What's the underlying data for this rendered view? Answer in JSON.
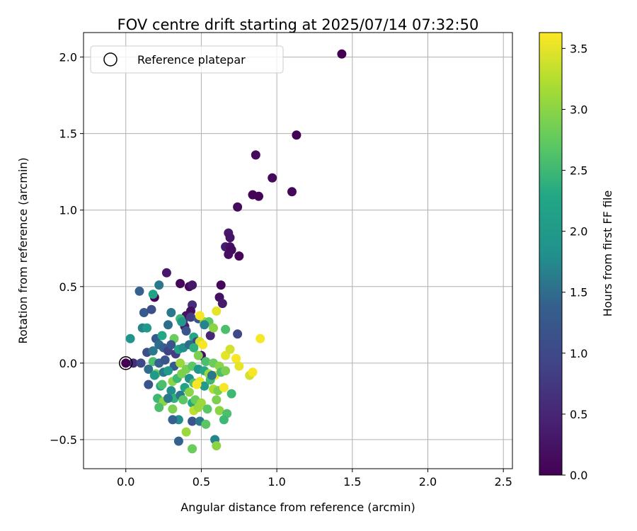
{
  "chart_data": {
    "type": "scatter",
    "title": "FOV centre drift starting at 2025/07/14 07:32:50",
    "xlabel": "Angular distance from reference (arcmin)",
    "ylabel": "Rotation from reference (arcmin)",
    "xlim": [
      -0.28,
      2.56
    ],
    "ylim": [
      -0.69,
      2.16
    ],
    "xticks": [
      0.0,
      0.5,
      1.0,
      1.5,
      2.0,
      2.5
    ],
    "xtick_labels": [
      "0.0",
      "0.5",
      "1.0",
      "1.5",
      "2.0",
      "2.5"
    ],
    "yticks": [
      -0.5,
      0.0,
      0.5,
      1.0,
      1.5,
      2.0
    ],
    "ytick_labels": [
      "−0.5",
      "0.0",
      "0.5",
      "1.0",
      "1.5",
      "2.0"
    ],
    "grid": true,
    "legend": {
      "placement": "top-left",
      "entries": [
        "Reference platepar"
      ]
    },
    "reference_point": {
      "x": 0.0,
      "y": 0.0,
      "label": "Reference platepar"
    },
    "colorbar": {
      "label": "Hours from first FF file",
      "colormap": "viridis",
      "range": [
        0.0,
        3.63
      ],
      "ticks": [
        0.0,
        0.5,
        1.0,
        1.5,
        2.0,
        2.5,
        3.0,
        3.5
      ],
      "tick_labels": [
        "0.0",
        "0.5",
        "1.0",
        "1.5",
        "2.0",
        "2.5",
        "3.0",
        "3.5"
      ]
    },
    "points": [
      [
        1.43,
        2.02,
        0.0
      ],
      [
        1.13,
        1.49,
        0.02
      ],
      [
        0.86,
        1.36,
        0.12
      ],
      [
        0.97,
        1.21,
        0.1
      ],
      [
        1.1,
        1.12,
        0.08
      ],
      [
        0.84,
        1.1,
        0.05
      ],
      [
        0.88,
        1.09,
        0.04
      ],
      [
        0.74,
        1.02,
        0.15
      ],
      [
        0.68,
        0.85,
        0.3
      ],
      [
        0.69,
        0.82,
        0.25
      ],
      [
        0.66,
        0.76,
        0.38
      ],
      [
        0.69,
        0.76,
        0.22
      ],
      [
        0.7,
        0.74,
        0.14
      ],
      [
        0.68,
        0.71,
        0.18
      ],
      [
        0.75,
        0.7,
        0.06
      ],
      [
        0.63,
        0.51,
        0.08
      ],
      [
        0.62,
        0.43,
        0.2
      ],
      [
        0.64,
        0.39,
        0.35
      ],
      [
        0.42,
        0.5,
        0.1
      ],
      [
        0.44,
        0.51,
        0.3
      ],
      [
        0.36,
        0.52,
        0.06
      ],
      [
        0.27,
        0.59,
        0.3
      ],
      [
        0.19,
        0.43,
        0.03
      ],
      [
        0.44,
        0.38,
        0.6
      ],
      [
        0.43,
        0.34,
        0.18
      ],
      [
        0.4,
        0.31,
        0.22
      ],
      [
        0.43,
        0.3,
        0.8
      ],
      [
        0.38,
        0.27,
        0.7
      ],
      [
        0.39,
        0.24,
        0.4
      ],
      [
        0.48,
        0.29,
        1.2
      ],
      [
        0.56,
        0.18,
        0.5
      ],
      [
        0.5,
        0.05,
        0.15
      ],
      [
        0.74,
        0.19,
        1.0
      ],
      [
        0.3,
        0.33,
        1.6
      ],
      [
        0.22,
        0.51,
        1.6
      ],
      [
        0.09,
        0.47,
        1.4
      ],
      [
        0.12,
        0.33,
        1.3
      ],
      [
        0.17,
        0.35,
        1.1
      ],
      [
        0.11,
        0.23,
        1.7
      ],
      [
        0.14,
        0.23,
        2.0
      ],
      [
        0.03,
        0.16,
        1.9
      ],
      [
        0.18,
        0.45,
        2.2
      ],
      [
        0.2,
        0.16,
        1.3
      ],
      [
        0.22,
        0.12,
        1.5
      ],
      [
        0.24,
        0.18,
        2.3
      ],
      [
        0.28,
        0.25,
        1.5
      ],
      [
        0.32,
        0.16,
        2.8
      ],
      [
        0.36,
        0.29,
        2.5
      ],
      [
        0.37,
        0.27,
        2.0
      ],
      [
        0.4,
        0.21,
        1.2
      ],
      [
        0.45,
        0.17,
        2.3
      ],
      [
        0.47,
        0.14,
        1.0
      ],
      [
        0.49,
        0.14,
        3.4
      ],
      [
        0.51,
        0.12,
        3.6
      ],
      [
        0.52,
        0.27,
        3.1
      ],
      [
        0.55,
        0.27,
        2.7
      ],
      [
        0.58,
        0.23,
        3.0
      ],
      [
        0.66,
        0.22,
        2.6
      ],
      [
        0.6,
        0.34,
        3.5
      ],
      [
        0.49,
        0.31,
        3.6
      ],
      [
        0.52,
        0.25,
        1.7
      ],
      [
        0.14,
        0.07,
        1.1
      ],
      [
        0.18,
        0.08,
        1.6
      ],
      [
        0.25,
        0.1,
        1.4
      ],
      [
        0.28,
        0.08,
        0.9
      ],
      [
        0.3,
        0.12,
        1.2
      ],
      [
        0.33,
        0.06,
        0.8
      ],
      [
        0.35,
        0.09,
        2.2
      ],
      [
        0.38,
        0.1,
        1.8
      ],
      [
        0.42,
        0.12,
        1.5
      ],
      [
        0.45,
        0.1,
        2.4
      ],
      [
        0.48,
        0.05,
        2.9
      ],
      [
        0.53,
        0.01,
        2.6
      ],
      [
        0.58,
        0.0,
        2.8
      ],
      [
        0.62,
        -0.02,
        3.0
      ],
      [
        0.66,
        0.05,
        3.5
      ],
      [
        0.69,
        0.09,
        3.4
      ],
      [
        0.73,
        0.03,
        3.6
      ],
      [
        0.75,
        -0.02,
        3.5
      ],
      [
        0.82,
        -0.08,
        3.4
      ],
      [
        0.84,
        -0.06,
        3.6
      ],
      [
        0.89,
        0.16,
        3.6
      ],
      [
        0.05,
        0.0,
        0.6
      ],
      [
        0.1,
        0.0,
        1.0
      ],
      [
        0.18,
        0.01,
        2.6
      ],
      [
        0.22,
        0.0,
        1.4
      ],
      [
        0.26,
        0.02,
        1.2
      ],
      [
        0.32,
        -0.02,
        1.3
      ],
      [
        0.36,
        0.0,
        3.1
      ],
      [
        0.4,
        -0.04,
        2.9
      ],
      [
        0.44,
        -0.02,
        2.7
      ],
      [
        0.48,
        -0.04,
        1.9
      ],
      [
        0.52,
        -0.05,
        2.3
      ],
      [
        0.55,
        -0.07,
        3.1
      ],
      [
        0.59,
        -0.08,
        3.6
      ],
      [
        0.63,
        -0.06,
        2.6
      ],
      [
        0.66,
        -0.05,
        2.9
      ],
      [
        0.7,
        -0.2,
        2.5
      ],
      [
        0.15,
        -0.04,
        1.5
      ],
      [
        0.2,
        -0.07,
        2.8
      ],
      [
        0.25,
        -0.06,
        1.6
      ],
      [
        0.28,
        -0.05,
        2.0
      ],
      [
        0.31,
        -0.12,
        3.0
      ],
      [
        0.34,
        -0.1,
        2.5
      ],
      [
        0.37,
        -0.07,
        2.9
      ],
      [
        0.39,
        -0.16,
        2.2
      ],
      [
        0.42,
        -0.1,
        1.8
      ],
      [
        0.45,
        -0.13,
        2.6
      ],
      [
        0.49,
        -0.12,
        3.5
      ],
      [
        0.52,
        -0.15,
        2.0
      ],
      [
        0.56,
        -0.11,
        2.5
      ],
      [
        0.58,
        -0.17,
        3.2
      ],
      [
        0.61,
        -0.18,
        2.9
      ],
      [
        0.65,
        -0.16,
        3.6
      ],
      [
        0.15,
        -0.14,
        1.2
      ],
      [
        0.19,
        -0.08,
        2.0
      ],
      [
        0.23,
        -0.15,
        2.3
      ],
      [
        0.24,
        -0.14,
        2.6
      ],
      [
        0.3,
        -0.18,
        1.8
      ],
      [
        0.32,
        -0.23,
        2.4
      ],
      [
        0.36,
        -0.21,
        1.6
      ],
      [
        0.38,
        -0.24,
        2.7
      ],
      [
        0.42,
        -0.19,
        3.0
      ],
      [
        0.44,
        -0.26,
        2.3
      ],
      [
        0.46,
        -0.24,
        2.8
      ],
      [
        0.5,
        -0.26,
        3.1
      ],
      [
        0.54,
        -0.3,
        2.7
      ],
      [
        0.6,
        -0.24,
        2.9
      ],
      [
        0.62,
        -0.31,
        3.0
      ],
      [
        0.67,
        -0.33,
        2.6
      ],
      [
        0.21,
        -0.23,
        2.5
      ],
      [
        0.25,
        -0.25,
        3.0
      ],
      [
        0.28,
        -0.23,
        1.6
      ],
      [
        0.31,
        -0.3,
        2.9
      ],
      [
        0.35,
        -0.37,
        1.8
      ],
      [
        0.31,
        -0.37,
        1.4
      ],
      [
        0.22,
        -0.29,
        2.6
      ],
      [
        0.4,
        -0.45,
        3.1
      ],
      [
        0.44,
        -0.38,
        1.2
      ],
      [
        0.49,
        -0.38,
        1.6
      ],
      [
        0.45,
        -0.31,
        3.3
      ],
      [
        0.48,
        -0.29,
        3.1
      ],
      [
        0.53,
        -0.4,
        2.7
      ],
      [
        0.59,
        -0.5,
        1.7
      ],
      [
        0.6,
        -0.54,
        3.0
      ],
      [
        0.65,
        -0.37,
        2.5
      ],
      [
        0.35,
        -0.51,
        1.4
      ],
      [
        0.44,
        -0.56,
        2.8
      ],
      [
        0.47,
        -0.14,
        3.6
      ],
      [
        0.57,
        -0.08,
        1.6
      ]
    ]
  }
}
